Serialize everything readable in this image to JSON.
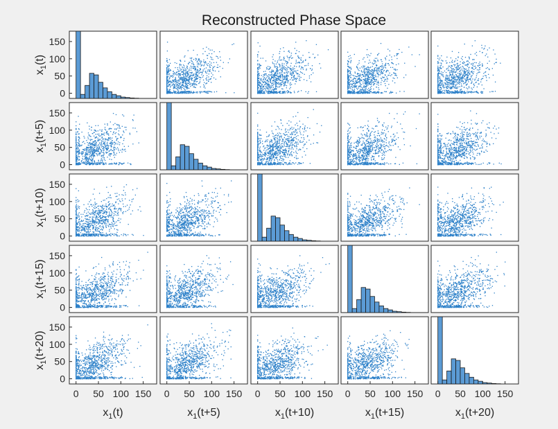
{
  "chart_data": {
    "type": "scatter-matrix",
    "title": "Reconstructed Phase Space",
    "variables": [
      {
        "base": "x",
        "sub": "1",
        "suffix": "(t)"
      },
      {
        "base": "x",
        "sub": "1",
        "suffix": "(t+5)"
      },
      {
        "base": "x",
        "sub": "1",
        "suffix": "(t+10)"
      },
      {
        "base": "x",
        "sub": "1",
        "suffix": "(t+15)"
      },
      {
        "base": "x",
        "sub": "1",
        "suffix": "(t+20)"
      }
    ],
    "axis_range": [
      -15,
      180
    ],
    "y_ticks": [
      0,
      50,
      100,
      150
    ],
    "x_ticks": [
      0,
      50,
      100,
      150
    ],
    "histogram": {
      "bin_edges": [
        0,
        10,
        20,
        30,
        40,
        50,
        60,
        70,
        80,
        90,
        100,
        110,
        120,
        130,
        140,
        150
      ],
      "counts": [
        300,
        18,
        58,
        112,
        105,
        72,
        47,
        30,
        18,
        12,
        6,
        4,
        2,
        1,
        0
      ],
      "count_max": 300
    },
    "scatter_model": {
      "zero_fraction": 0.15,
      "mean": 45,
      "sd": 26,
      "correlation": 0.55,
      "points_per_panel": 900
    },
    "colors": {
      "marker": "#2a7fc8",
      "bar_fill": "#5b9bd5",
      "bar_edge": "#1a1a1a",
      "background": "#f0f0f0"
    }
  }
}
